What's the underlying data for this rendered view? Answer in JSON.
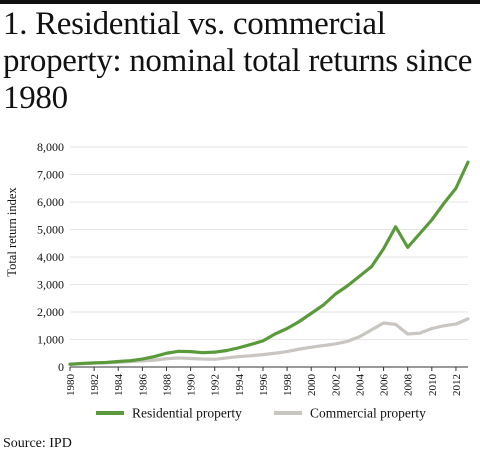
{
  "title": "1. Residential vs. commercial property: nominal total returns since 1980",
  "source": "Source: IPD",
  "colors": {
    "residential": "#5b9a3a",
    "commercial": "#c9c5c1",
    "axis": "#333333",
    "grid": "#e6e6e6"
  },
  "chart_data": {
    "type": "line",
    "title": "1. Residential vs. commercial property: nominal total returns since 1980",
    "xlabel": "",
    "ylabel": "Total return index",
    "xlim": [
      1980,
      2013
    ],
    "ylim": [
      0,
      8000
    ],
    "x_ticks": [
      "1980",
      "1982",
      "1984",
      "1986",
      "1988",
      "1990",
      "1992",
      "1994",
      "1996",
      "1998",
      "2000",
      "2002",
      "2004",
      "2006",
      "2008",
      "2010",
      "2012"
    ],
    "y_ticks": [
      "0",
      "1,000",
      "2,000",
      "3,000",
      "4,000",
      "5,000",
      "6,000",
      "7,000",
      "8,000"
    ],
    "grid": true,
    "legend_position": "bottom",
    "x": [
      1980,
      1981,
      1982,
      1983,
      1984,
      1985,
      1986,
      1987,
      1988,
      1989,
      1990,
      1991,
      1992,
      1993,
      1994,
      1995,
      1996,
      1997,
      1998,
      1999,
      2000,
      2001,
      2002,
      2003,
      2004,
      2005,
      2006,
      2007,
      2008,
      2009,
      2010,
      2011,
      2012,
      2013
    ],
    "series": [
      {
        "name": "Residential property",
        "values": [
          100,
          130,
          150,
          165,
          200,
          230,
          290,
          380,
          500,
          570,
          560,
          520,
          540,
          600,
          700,
          820,
          950,
          1200,
          1400,
          1650,
          1950,
          2250,
          2650,
          2950,
          3300,
          3650,
          4300,
          5100,
          4350,
          4850,
          5350,
          5950,
          6500,
          7450
        ]
      },
      {
        "name": "Commercial property",
        "values": [
          100,
          120,
          140,
          150,
          170,
          200,
          220,
          250,
          300,
          330,
          310,
          290,
          280,
          330,
          380,
          410,
          450,
          500,
          560,
          650,
          720,
          780,
          840,
          930,
          1100,
          1350,
          1600,
          1550,
          1200,
          1230,
          1400,
          1500,
          1560,
          1750
        ]
      }
    ]
  }
}
